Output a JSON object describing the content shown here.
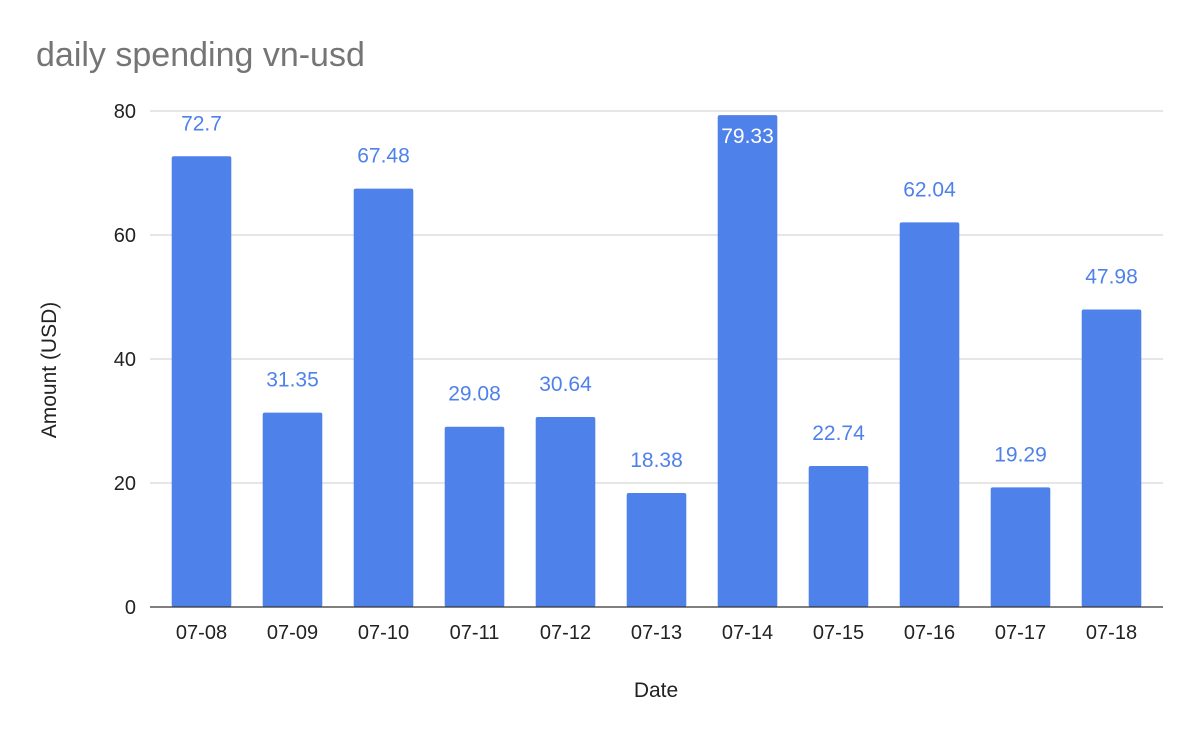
{
  "chart_data": {
    "type": "bar",
    "title": "daily spending vn-usd",
    "xlabel": "Date",
    "ylabel": "Amount (USD)",
    "categories": [
      "07-08",
      "07-09",
      "07-10",
      "07-11",
      "07-12",
      "07-13",
      "07-14",
      "07-15",
      "07-16",
      "07-17",
      "07-18"
    ],
    "values": [
      72.7,
      31.35,
      67.48,
      29.08,
      30.64,
      18.38,
      79.33,
      22.74,
      62.04,
      19.29,
      47.98
    ],
    "data_labels": [
      "72.7",
      "31.35",
      "67.48",
      "29.08",
      "30.64",
      "18.38",
      "79.33",
      "22.74",
      "62.04",
      "19.29",
      "47.98"
    ],
    "ylim": [
      0,
      80
    ],
    "yticks": [
      0,
      20,
      40,
      60,
      80
    ],
    "ytick_labels": [
      "0",
      "20",
      "40",
      "60",
      "80"
    ],
    "grid": true,
    "legend": "none",
    "colors": {
      "bar": "#4f81ea",
      "label_outside": "#4f81ea",
      "label_inside": "#ffffff",
      "gridline": "#cccccc",
      "title": "#757575"
    }
  }
}
